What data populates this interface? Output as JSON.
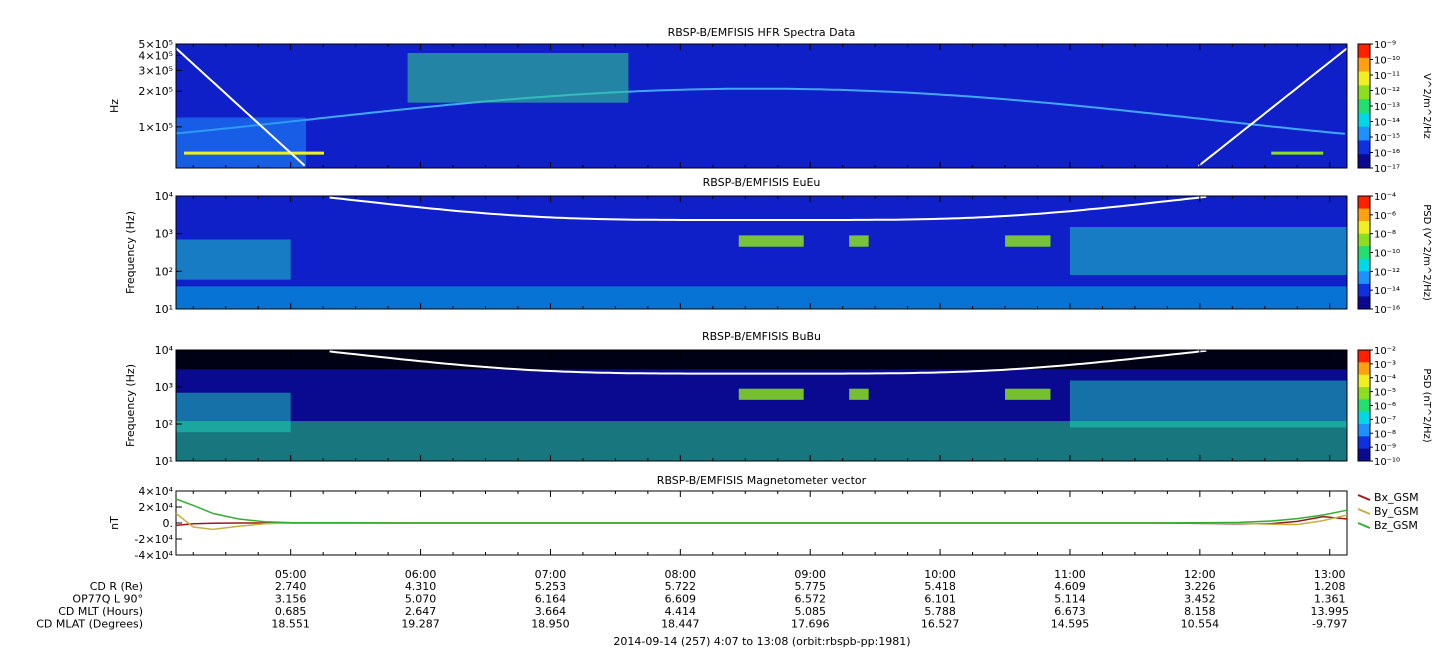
{
  "colors": {
    "spectrogram_palette": [
      "#0a0a90",
      "#1030e0",
      "#1e90ff",
      "#00d8e8",
      "#22e070",
      "#8ae020",
      "#f0f020",
      "#ffa010",
      "#ff2000"
    ],
    "bx": "#a01818",
    "by": "#c8b040",
    "bz": "#30b030",
    "overlay_line": "#ffffff"
  },
  "chart_data": [
    {
      "type": "heatmap",
      "title": "RBSP-B/EMFISIS  HFR Spectra Data",
      "ylabel": "Hz",
      "y_scale": "log",
      "y_ticks": [
        {
          "value": 500000,
          "label": "5×10⁵"
        },
        {
          "value": 400000,
          "label": "4×10⁵"
        },
        {
          "value": 300000,
          "label": "3×10⁵"
        },
        {
          "value": 200000,
          "label": "2×10⁵"
        },
        {
          "value": 100000,
          "label": "1×10⁵"
        }
      ],
      "colorbar": {
        "label": "V^2/m^2/Hz",
        "scale": "log",
        "ticks": [
          "10⁻⁹",
          "10⁻¹⁰",
          "10⁻¹¹",
          "10⁻¹²",
          "10⁻¹³",
          "10⁻¹⁴",
          "10⁻¹⁵",
          "10⁻¹⁶",
          "10⁻¹⁷"
        ]
      },
      "background_level": 0.15
    },
    {
      "type": "heatmap",
      "title": "RBSP-B/EMFISIS  EuEu",
      "ylabel": "Frequency (Hz)",
      "y_scale": "log",
      "y_ticks": [
        {
          "value": 10000,
          "label": "10⁴"
        },
        {
          "value": 1000,
          "label": "10³"
        },
        {
          "value": 100,
          "label": "10²"
        },
        {
          "value": 10,
          "label": "10¹"
        }
      ],
      "colorbar": {
        "label": "PSD (V^2/m^2/Hz)",
        "scale": "log",
        "ticks": [
          "10⁻⁴",
          "10⁻⁶",
          "10⁻⁸",
          "10⁻¹⁰",
          "10⁻¹²",
          "10⁻¹⁴",
          "10⁻¹⁶"
        ]
      },
      "background_level": 0.2
    },
    {
      "type": "heatmap",
      "title": "RBSP-B/EMFISIS  BuBu",
      "ylabel": "Frequency (Hz)",
      "y_scale": "log",
      "y_ticks": [
        {
          "value": 10000,
          "label": "10⁴"
        },
        {
          "value": 1000,
          "label": "10³"
        },
        {
          "value": 100,
          "label": "10²"
        },
        {
          "value": 10,
          "label": "10¹"
        }
      ],
      "colorbar": {
        "label": "PSD (nT^2/Hz)",
        "scale": "log",
        "ticks": [
          "10⁻²",
          "10⁻³",
          "10⁻⁴",
          "10⁻⁵",
          "10⁻⁶",
          "10⁻⁷",
          "10⁻⁸",
          "10⁻⁹",
          "10⁻¹⁰"
        ]
      },
      "background_level": 0.3
    },
    {
      "type": "line",
      "title": "RBSP-B/EMFISIS  Magnetometer vector",
      "ylabel": "nT",
      "ylim": [
        -40000,
        40000
      ],
      "y_ticks": [
        {
          "value": 40000,
          "label": "4×10⁴"
        },
        {
          "value": 20000,
          "label": "2×10⁴"
        },
        {
          "value": 0,
          "label": "0."
        },
        {
          "value": -20000,
          "label": "-2×10⁴"
        },
        {
          "value": -40000,
          "label": "-4×10⁴"
        }
      ],
      "x_hours": [
        4.117,
        4.25,
        4.4,
        4.6,
        4.8,
        5.0,
        6.0,
        8.0,
        10.0,
        11.5,
        12.0,
        12.3,
        12.55,
        12.75,
        12.95,
        13.133
      ],
      "series": [
        {
          "name": "Bx_GSM",
          "color_key": "bx",
          "values": [
            -3000,
            -1000,
            -200,
            0,
            0,
            0,
            0,
            0,
            0,
            0,
            -500,
            -1000,
            -800,
            2000,
            8000,
            5000
          ]
        },
        {
          "name": "By_GSM",
          "color_key": "by",
          "values": [
            12000,
            -5000,
            -8000,
            -4000,
            -1000,
            0,
            0,
            0,
            0,
            0,
            0,
            -200,
            -1500,
            -2000,
            3000,
            10000
          ]
        },
        {
          "name": "Bz_GSM",
          "color_key": "bz",
          "values": [
            30000,
            22000,
            12000,
            5000,
            1500,
            500,
            0,
            0,
            0,
            0,
            200,
            800,
            2500,
            5500,
            10000,
            16000
          ]
        }
      ]
    }
  ],
  "time_axis": {
    "start_hour": 4.117,
    "end_hour": 13.133,
    "tick_labels": [
      "05:00",
      "06:00",
      "07:00",
      "08:00",
      "09:00",
      "10:00",
      "11:00",
      "12:00",
      "13:00"
    ]
  },
  "ephemeris": {
    "rows": [
      {
        "label": "CD R (Re)",
        "values": [
          "2.740",
          "4.310",
          "5.253",
          "5.722",
          "5.775",
          "5.418",
          "4.609",
          "3.226",
          "1.208"
        ]
      },
      {
        "label": "OP77Q L 90°",
        "values": [
          "3.156",
          "5.070",
          "6.164",
          "6.609",
          "6.572",
          "6.101",
          "5.114",
          "3.452",
          "1.361"
        ]
      },
      {
        "label": "CD MLT (Hours)",
        "values": [
          "0.685",
          "2.647",
          "3.664",
          "4.414",
          "5.085",
          "5.788",
          "6.673",
          "8.158",
          "13.995"
        ]
      },
      {
        "label": "CD MLAT (Degrees)",
        "values": [
          "18.551",
          "19.287",
          "18.950",
          "18.447",
          "17.696",
          "16.527",
          "14.595",
          "10.554",
          "-9.797"
        ]
      }
    ]
  },
  "footer": {
    "caption": "2014-09-14 (257) 4:07 to 13:08 (orbit:rbspb-pp:1981)"
  }
}
